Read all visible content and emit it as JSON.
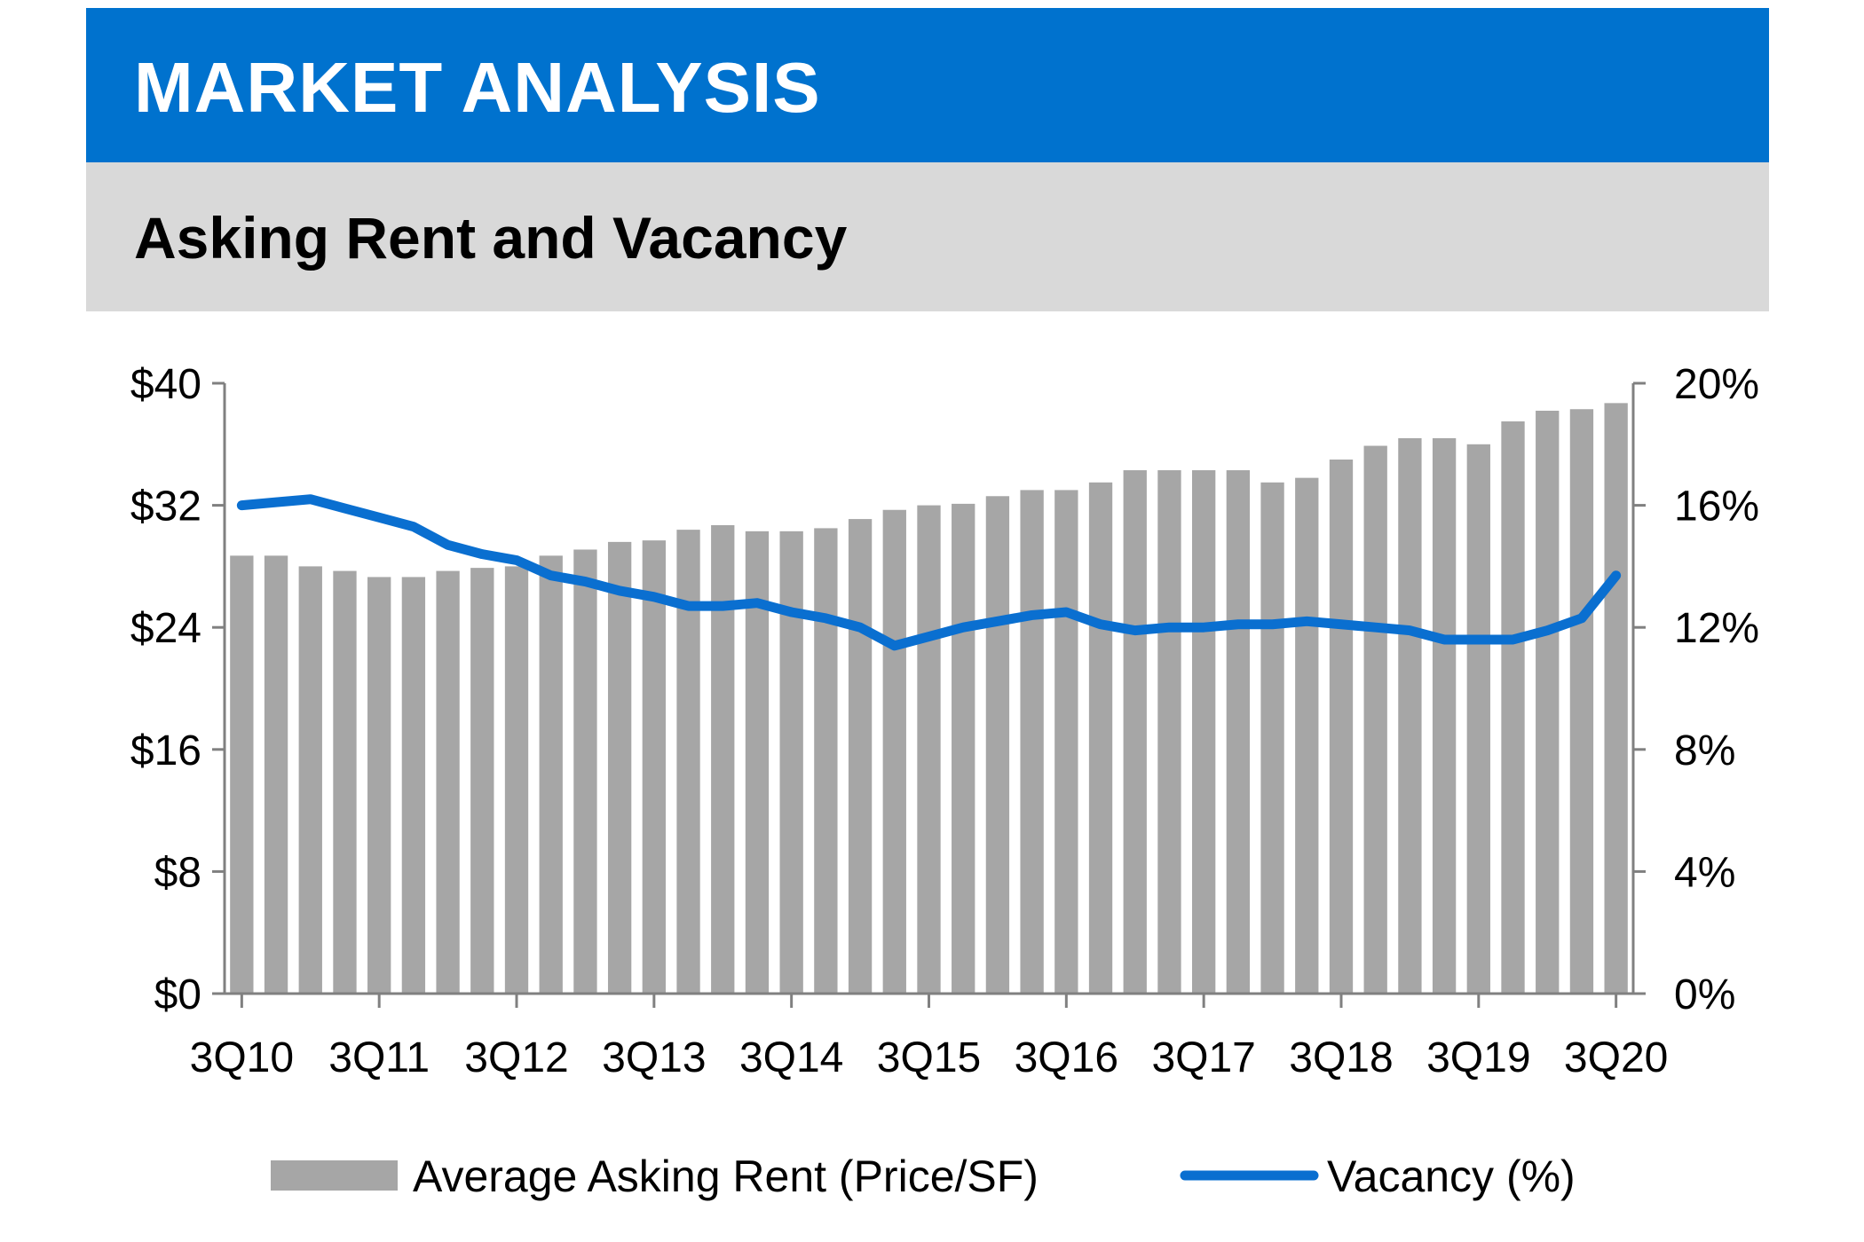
{
  "header": {
    "title": "MARKET ANALYSIS",
    "subtitle": "Asking Rent and Vacancy"
  },
  "colors": {
    "banner": "#0072CE",
    "subhead": "#D9D9D9",
    "bar": "#A6A6A6",
    "line": "#0A6FD0",
    "axis": "#808080"
  },
  "chart_data": {
    "type": "bar",
    "categories": [
      "3Q10",
      "4Q10",
      "1Q11",
      "2Q11",
      "3Q11",
      "4Q11",
      "1Q12",
      "2Q12",
      "3Q12",
      "4Q12",
      "1Q13",
      "2Q13",
      "3Q13",
      "4Q13",
      "1Q14",
      "2Q14",
      "3Q14",
      "4Q14",
      "1Q15",
      "2Q15",
      "3Q15",
      "4Q15",
      "1Q16",
      "2Q16",
      "3Q16",
      "4Q16",
      "1Q17",
      "2Q17",
      "3Q17",
      "4Q17",
      "1Q18",
      "2Q18",
      "3Q18",
      "4Q18",
      "1Q19",
      "2Q19",
      "3Q19",
      "4Q19",
      "1Q20",
      "2Q20",
      "3Q20"
    ],
    "x_tick_labels": [
      "3Q10",
      "3Q11",
      "3Q12",
      "3Q13",
      "3Q14",
      "3Q15",
      "3Q16",
      "3Q17",
      "3Q18",
      "3Q19",
      "3Q20"
    ],
    "series": [
      {
        "name": "Average Asking Rent (Price/SF)",
        "type": "bar",
        "axis": "left",
        "values": [
          28.7,
          28.7,
          28.0,
          27.7,
          27.3,
          27.3,
          27.7,
          27.9,
          28.0,
          28.7,
          29.1,
          29.6,
          29.7,
          30.4,
          30.7,
          30.3,
          30.3,
          30.5,
          31.1,
          31.7,
          32.0,
          32.1,
          32.6,
          33.0,
          33.0,
          33.5,
          34.3,
          34.3,
          34.3,
          34.3,
          33.5,
          33.8,
          35.0,
          35.9,
          36.4,
          36.4,
          36.0,
          37.5,
          38.2,
          38.3,
          38.7
        ]
      },
      {
        "name": "Vacancy (%)",
        "type": "line",
        "axis": "right",
        "values": [
          16.0,
          16.1,
          16.2,
          15.9,
          15.6,
          15.3,
          14.7,
          14.4,
          14.2,
          13.7,
          13.5,
          13.2,
          13.0,
          12.7,
          12.7,
          12.8,
          12.5,
          12.3,
          12.0,
          11.4,
          11.7,
          12.0,
          12.2,
          12.4,
          12.5,
          12.1,
          11.9,
          12.0,
          12.0,
          12.1,
          12.1,
          12.2,
          12.1,
          12.0,
          11.9,
          11.6,
          11.6,
          11.6,
          11.9,
          12.3,
          13.7
        ]
      }
    ],
    "y_left": {
      "min": 0,
      "max": 40,
      "ticks": [
        "$0",
        "$8",
        "$16",
        "$24",
        "$32",
        "$40"
      ]
    },
    "y_right": {
      "min": 0,
      "max": 20,
      "ticks": [
        "0%",
        "4%",
        "8%",
        "12%",
        "16%",
        "20%"
      ]
    },
    "grid": false,
    "legend_position": "bottom",
    "legend": [
      "Average Asking Rent (Price/SF)",
      "Vacancy (%)"
    ]
  }
}
